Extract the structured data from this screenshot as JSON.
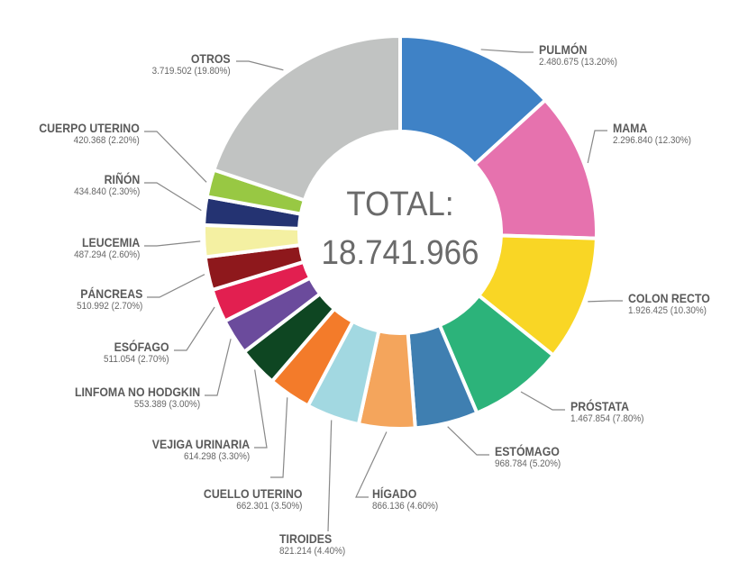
{
  "chart_data": {
    "type": "pie",
    "variant": "donut",
    "center_label": {
      "title": "TOTAL:",
      "value": "18.741.966"
    },
    "slices": [
      {
        "label": "PULMÓN",
        "value": 2480675,
        "value_text": "2.480.675 (13.20%)",
        "percent": 13.2,
        "color": "#3f82c6"
      },
      {
        "label": "MAMA",
        "value": 2296840,
        "value_text": "2.296.840 (12.30%)",
        "percent": 12.3,
        "color": "#e672ae"
      },
      {
        "label": "COLON RECTO",
        "value": 1926425,
        "value_text": "1.926.425 (10.30%)",
        "percent": 10.3,
        "color": "#f9d625"
      },
      {
        "label": "PRÓSTATA",
        "value": 1467854,
        "value_text": "1.467.854 (7.80%)",
        "percent": 7.8,
        "color": "#2cb37a"
      },
      {
        "label": "ESTÓMAGO",
        "value": 968784,
        "value_text": "968.784 (5.20%)",
        "percent": 5.2,
        "color": "#3f7fb1"
      },
      {
        "label": "HÍGADO",
        "value": 866136,
        "value_text": "866.136 (4.60%)",
        "percent": 4.6,
        "color": "#f4a55c"
      },
      {
        "label": "TIROIDES",
        "value": 821214,
        "value_text": "821.214 (4.40%)",
        "percent": 4.4,
        "color": "#a2d8e1"
      },
      {
        "label": "CUELLO UTERINO",
        "value": 662301,
        "value_text": "662.301 (3.50%)",
        "percent": 3.5,
        "color": "#f37b2a"
      },
      {
        "label": "VEJIGA URINARIA",
        "value": 614298,
        "value_text": "614.298 (3.30%)",
        "percent": 3.3,
        "color": "#0e4622"
      },
      {
        "label": "LINFOMA NO HODGKIN",
        "value": 553389,
        "value_text": "553.389 (3.00%)",
        "percent": 3.0,
        "color": "#6b4b9c"
      },
      {
        "label": "ESÓFAGO",
        "value": 511054,
        "value_text": "511.054 (2.70%)",
        "percent": 2.7,
        "color": "#e21f50"
      },
      {
        "label": "PÁNCREAS",
        "value": 510992,
        "value_text": "510.992 (2.70%)",
        "percent": 2.7,
        "color": "#8e181c"
      },
      {
        "label": "LEUCEMIA",
        "value": 487294,
        "value_text": "487.294 (2.60%)",
        "percent": 2.6,
        "color": "#f4f0a2"
      },
      {
        "label": "RIÑÓN",
        "value": 434840,
        "value_text": "434.840 (2.30%)",
        "percent": 2.3,
        "color": "#243372"
      },
      {
        "label": "CUERPO UTERINO",
        "value": 420368,
        "value_text": "420.368 (2.20%)",
        "percent": 2.2,
        "color": "#98c843"
      },
      {
        "label": "OTROS",
        "value": 3719502,
        "value_text": "3.719.502 (19.80%)",
        "percent": 19.8,
        "color": "#c1c3c2"
      }
    ]
  }
}
